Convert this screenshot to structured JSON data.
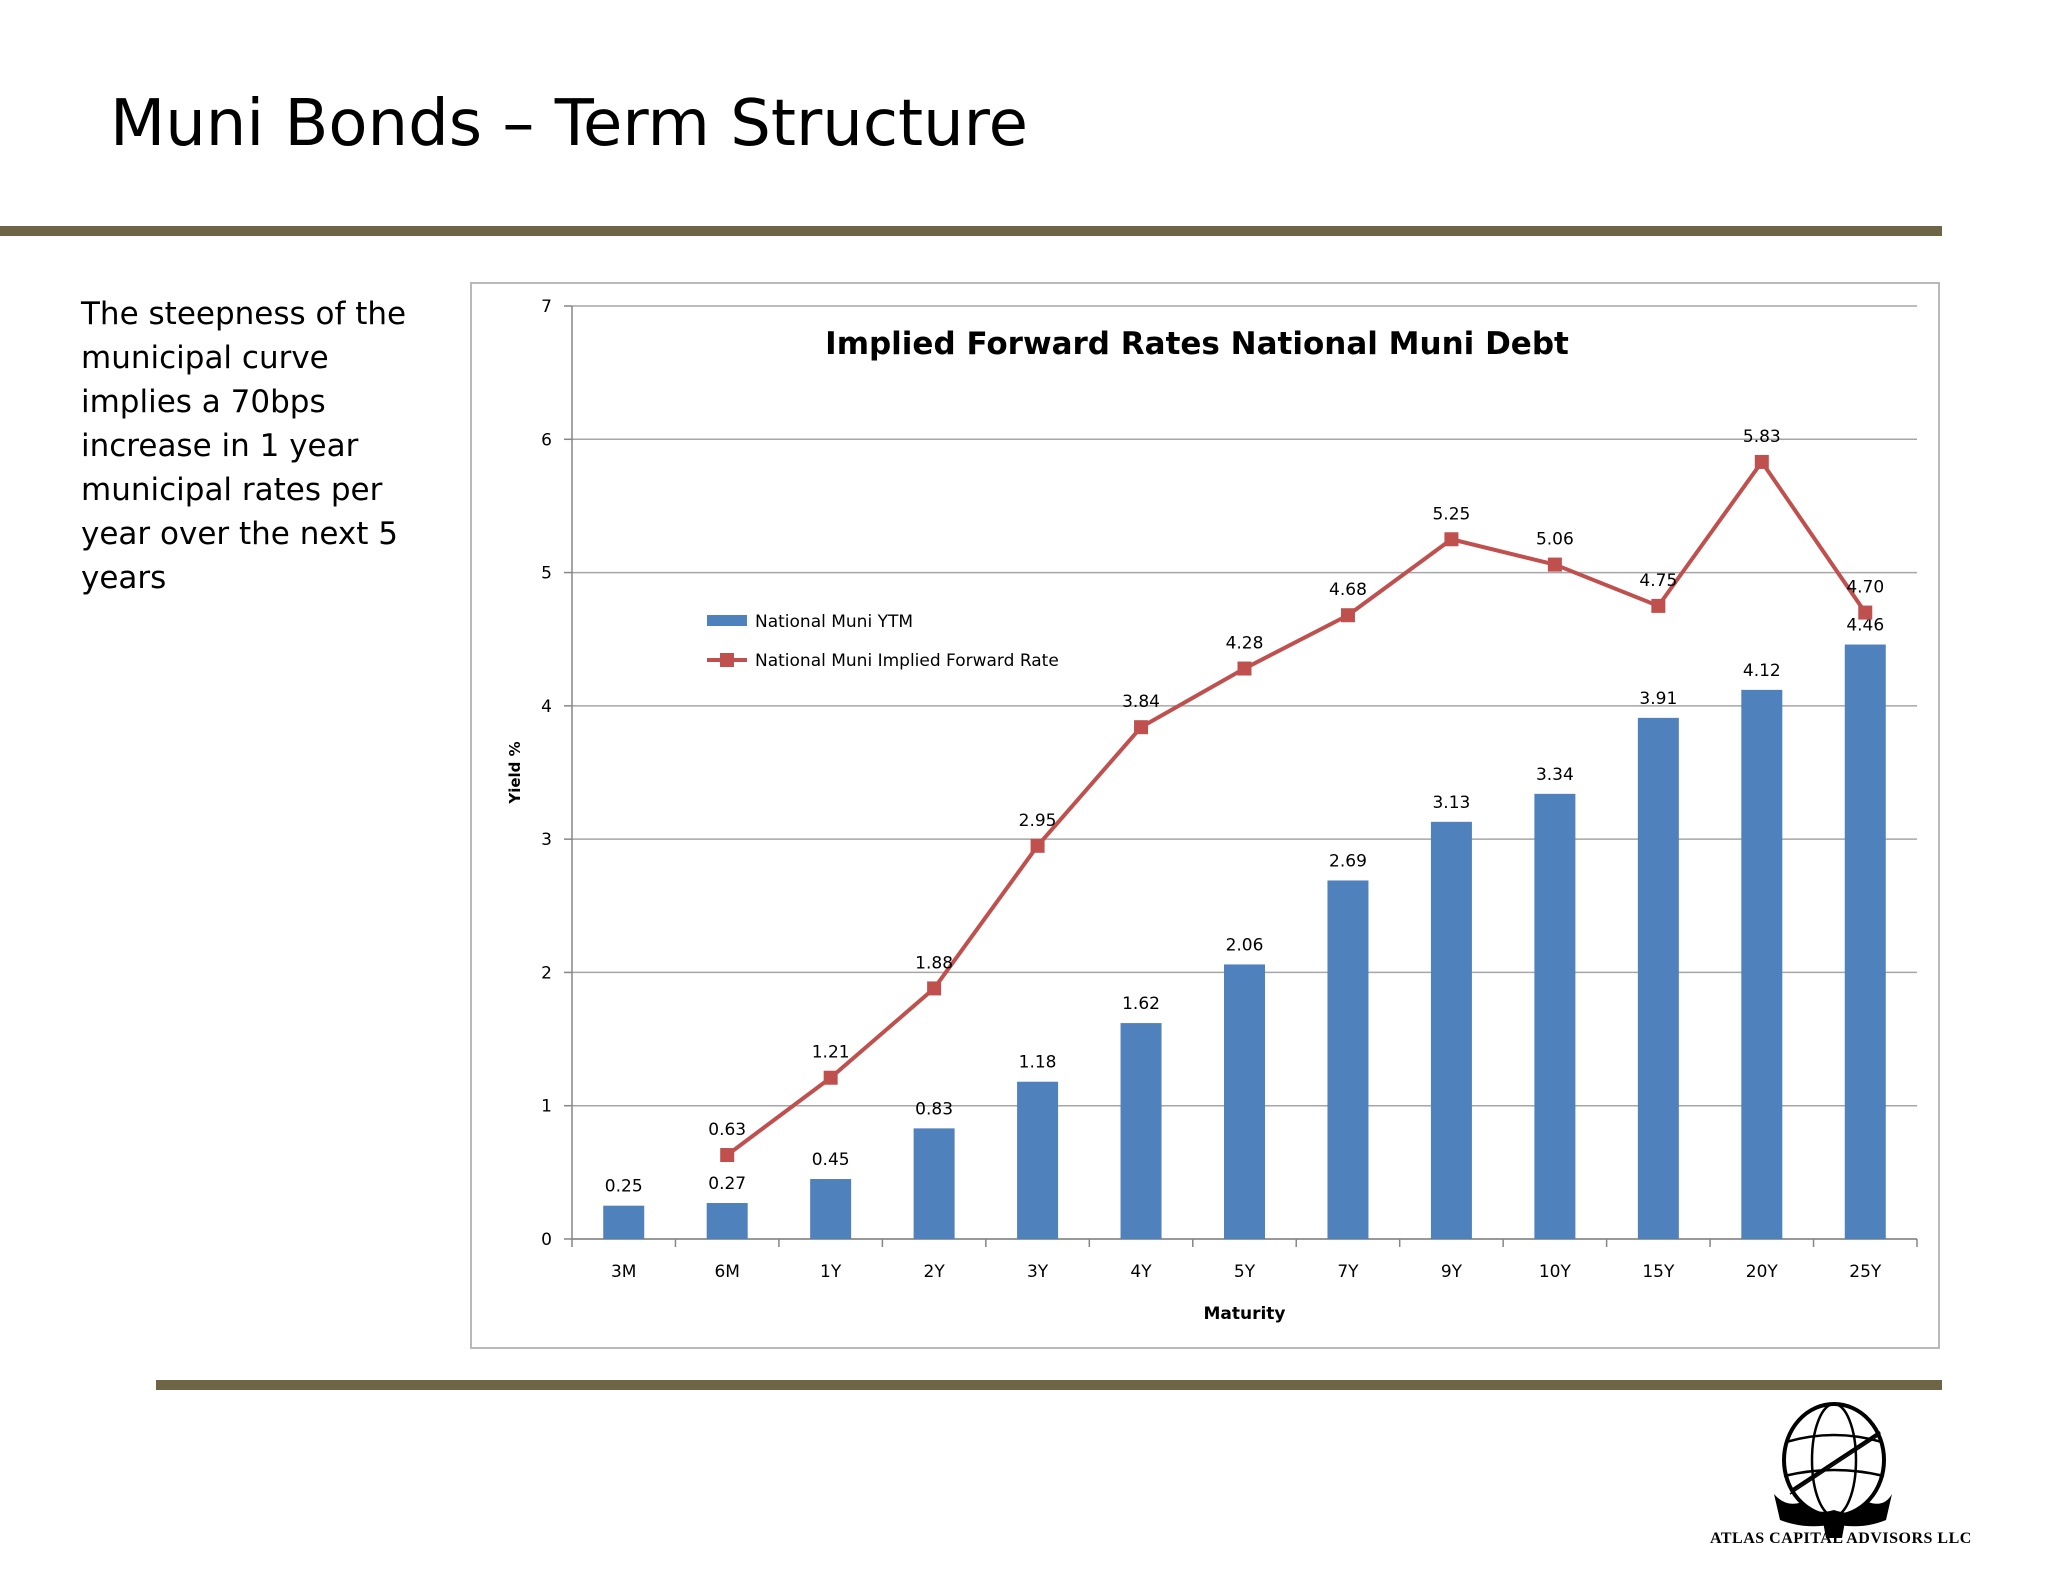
{
  "page": {
    "title": "Muni Bonds – Term Structure",
    "body_text": "The steepness of the municipal curve implies a 70bps increase in 1 year municipal rates per year over the next 5 years",
    "footer_company": "ATLAS CAPITAL ADVISORS LLC"
  },
  "colors": {
    "rule": "#6e6546",
    "bar": "#4f81bd",
    "line": "#c0504d",
    "grid": "#a6a6a6"
  },
  "chart_data": {
    "type": "bar",
    "title": "Implied Forward Rates National Muni Debt",
    "xlabel": "Maturity",
    "ylabel": "Yield %",
    "ylim": [
      0,
      7
    ],
    "yticks": [
      "0",
      "1",
      "2",
      "3",
      "4",
      "5",
      "6",
      "7"
    ],
    "grid": true,
    "legend_position": "top-left",
    "categories": [
      "3M",
      "6M",
      "1Y",
      "2Y",
      "3Y",
      "4Y",
      "5Y",
      "7Y",
      "9Y",
      "10Y",
      "15Y",
      "20Y",
      "25Y"
    ],
    "series": [
      {
        "name": "National Muni YTM",
        "kind": "bar",
        "values": [
          0.25,
          0.27,
          0.45,
          0.83,
          1.18,
          1.62,
          2.06,
          2.69,
          3.13,
          3.34,
          3.91,
          4.12,
          4.46
        ],
        "labels": [
          "0.25",
          "0.27",
          "0.45",
          "0.83",
          "1.18",
          "1.62",
          "2.06",
          "2.69",
          "3.13",
          "3.34",
          "3.91",
          "4.12",
          "4.46"
        ]
      },
      {
        "name": "National Muni Implied Forward Rate",
        "kind": "line",
        "values": [
          null,
          0.63,
          1.21,
          1.88,
          2.95,
          3.84,
          4.28,
          4.68,
          5.25,
          5.06,
          4.75,
          5.83,
          4.7
        ],
        "labels": [
          "",
          "0.63",
          "1.21",
          "1.88",
          "2.95",
          "3.84",
          "4.28",
          "4.68",
          "5.25",
          "5.06",
          "4.75",
          "5.83",
          "4.70"
        ]
      }
    ]
  }
}
